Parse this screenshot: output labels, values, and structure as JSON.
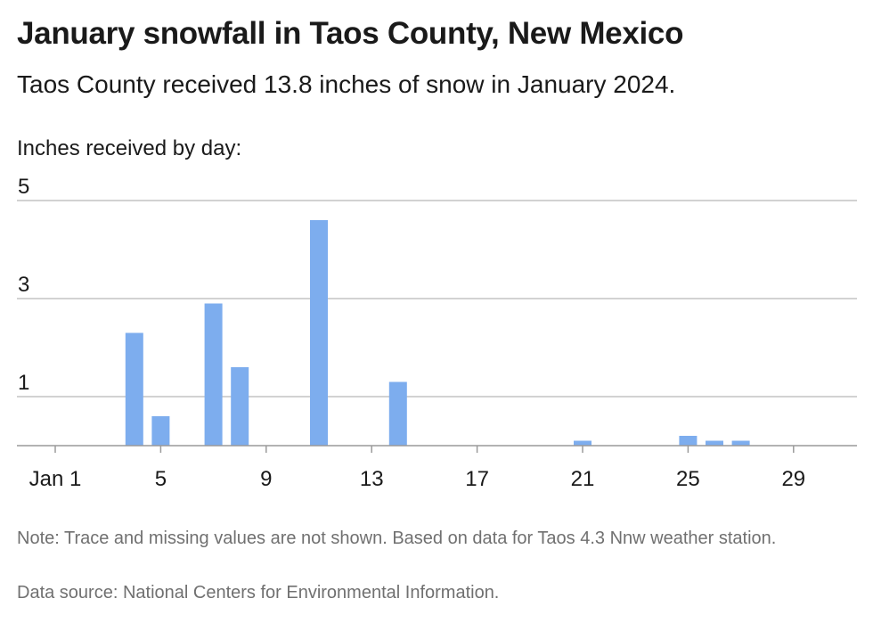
{
  "header": {
    "title": "January snowfall in Taos County, New Mexico",
    "subtitle": "Taos County received 13.8 inches of snow in January 2024.",
    "axis_caption": "Inches received by day:"
  },
  "footer": {
    "note": "Note: Trace and missing values are not shown. Based on data for Taos 4.3 Nnw weather station.",
    "source": "Data source: National Centers for Environmental Information."
  },
  "chart_data": {
    "type": "bar",
    "title": "January snowfall in Taos County, New Mexico",
    "subtitle": "Taos County received 13.8 inches of snow in January 2024.",
    "ylabel": "Inches received by day:",
    "xlabel": "",
    "x_range": [
      1,
      31
    ],
    "ylim": [
      0,
      5
    ],
    "y_ticks": [
      1,
      3,
      5
    ],
    "x_ticks": [
      1,
      5,
      9,
      13,
      17,
      21,
      25,
      29
    ],
    "x_tick_labels": [
      "Jan 1",
      "5",
      "9",
      "13",
      "17",
      "21",
      "25",
      "29"
    ],
    "grid": "horizontal",
    "bar_color": "#7dadee",
    "series": [
      {
        "values": [
          {
            "day": 4,
            "value": 2.3
          },
          {
            "day": 5,
            "value": 0.6
          },
          {
            "day": 7,
            "value": 2.9
          },
          {
            "day": 8,
            "value": 1.6
          },
          {
            "day": 11,
            "value": 4.6
          },
          {
            "day": 14,
            "value": 1.3
          },
          {
            "day": 21,
            "value": 0.1
          },
          {
            "day": 25,
            "value": 0.2
          },
          {
            "day": 26,
            "value": 0.1
          },
          {
            "day": 27,
            "value": 0.1
          }
        ]
      }
    ]
  }
}
